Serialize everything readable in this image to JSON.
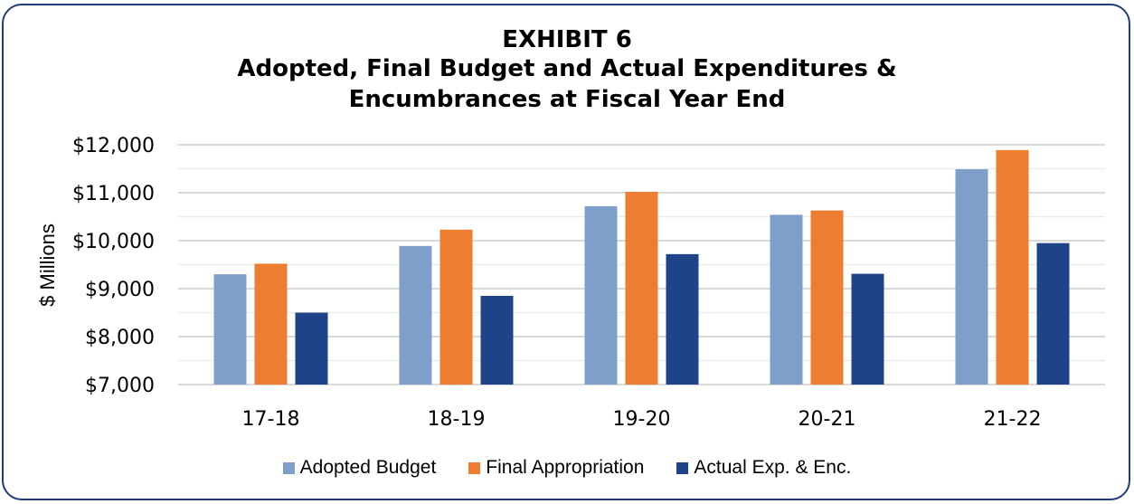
{
  "chart_data": {
    "type": "bar",
    "title_lines": [
      "EXHIBIT 6",
      "Adopted, Final Budget and Actual Expenditures &",
      "Encumbrances at Fiscal Year End"
    ],
    "xlabel": "",
    "ylabel": "$ Millions",
    "ylim": [
      7000,
      12000
    ],
    "yticks": [
      7000,
      8000,
      9000,
      10000,
      11000,
      12000
    ],
    "ytick_labels": [
      "$7,000",
      "$8,000",
      "$9,000",
      "$10,000",
      "$11,000",
      "$12,000"
    ],
    "minor_grid_step": 500,
    "grid": true,
    "categories": [
      "17-18",
      "18-19",
      "19-20",
      "20-21",
      "21-22"
    ],
    "series": [
      {
        "name": "Adopted Budget",
        "color": "#7f9fcb",
        "values": [
          9300,
          9890,
          10720,
          10540,
          11490
        ]
      },
      {
        "name": "Final Appropriation",
        "color": "#ed7d31",
        "values": [
          9520,
          10230,
          11020,
          10630,
          11890
        ]
      },
      {
        "name": "Actual Exp. & Enc.",
        "color": "#1f4388",
        "values": [
          8500,
          8850,
          9720,
          9310,
          9950
        ]
      }
    ],
    "legend_position": "bottom"
  }
}
